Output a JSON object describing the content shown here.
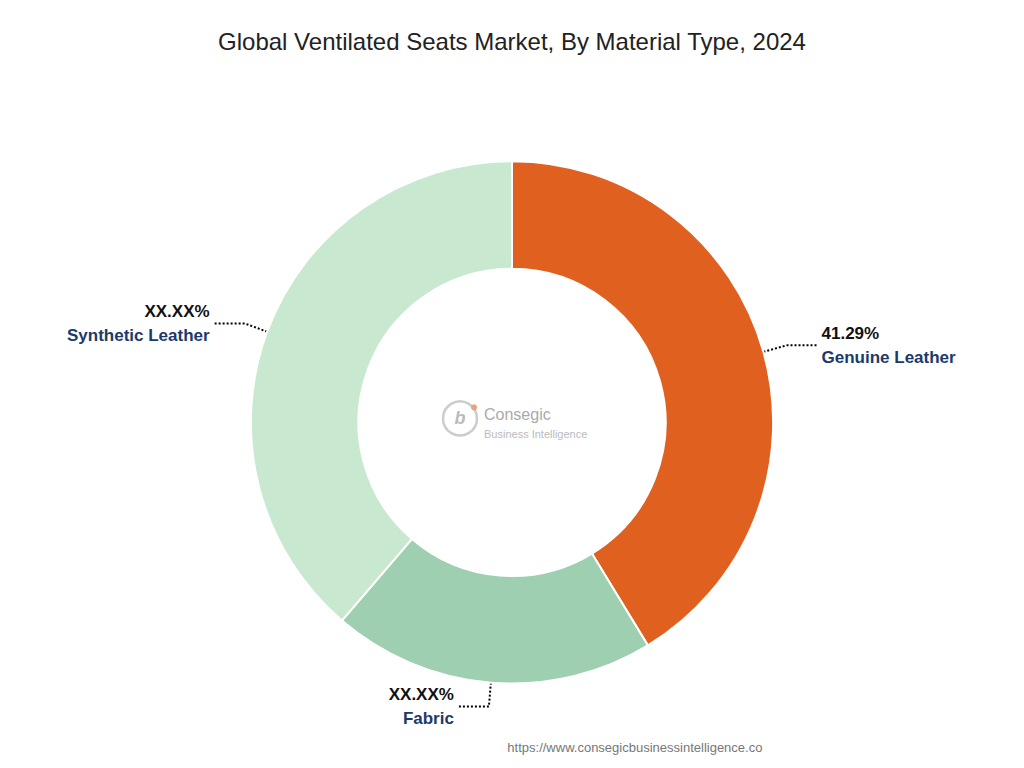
{
  "chart_data": {
    "type": "pie",
    "title": "Global Ventilated Seats Market, By Material Type, 2024",
    "categories": [
      "Genuine Leather",
      "Fabric",
      "Synthetic Leather"
    ],
    "values": [
      41.29,
      20.0,
      38.71
    ],
    "value_labels": [
      "41.29%",
      "XX.XX%",
      "XX.XX%"
    ],
    "colors": [
      "#E06020",
      "#9ECFB0",
      "#C8E8D0"
    ],
    "data_labels": true,
    "annotations": [
      "b",
      "Consegic",
      "Business Intelligence",
      "https://www.consegicbusinessintelligence.co"
    ]
  }
}
